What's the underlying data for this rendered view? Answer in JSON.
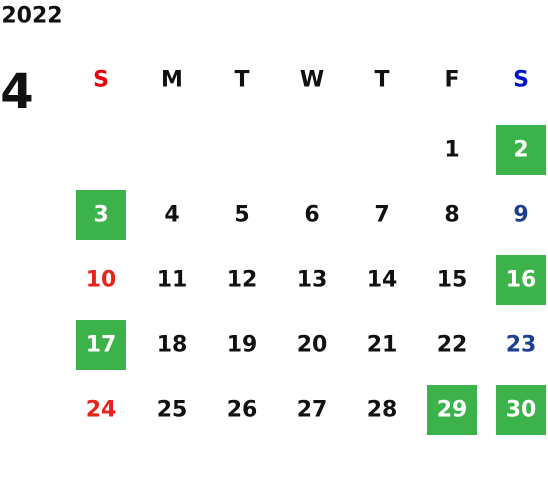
{
  "year": "2022",
  "month": "4",
  "weekdays": [
    {
      "text": "S",
      "color": "#e60012"
    },
    {
      "text": "M"
    },
    {
      "text": "T"
    },
    {
      "text": "W"
    },
    {
      "text": "T"
    },
    {
      "text": "F"
    },
    {
      "text": "S",
      "color": "#0014cc"
    }
  ],
  "colors": {
    "default": "#111111",
    "sunday": "#e8231c",
    "saturday": "#1e3f91",
    "highlight": "#3bb34a",
    "highlight_text": "#ffffff"
  },
  "weeks": [
    [
      null,
      null,
      null,
      null,
      null,
      {
        "text": "1"
      },
      {
        "text": "2",
        "highlight": true
      }
    ],
    [
      {
        "text": "3",
        "highlight": true
      },
      {
        "text": "4"
      },
      {
        "text": "5"
      },
      {
        "text": "6"
      },
      {
        "text": "7"
      },
      {
        "text": "8"
      },
      {
        "text": "9"
      }
    ],
    [
      {
        "text": "10"
      },
      {
        "text": "11"
      },
      {
        "text": "12"
      },
      {
        "text": "13"
      },
      {
        "text": "14"
      },
      {
        "text": "15"
      },
      {
        "text": "16",
        "highlight": true
      }
    ],
    [
      {
        "text": "17",
        "highlight": true
      },
      {
        "text": "18"
      },
      {
        "text": "19"
      },
      {
        "text": "20"
      },
      {
        "text": "21"
      },
      {
        "text": "22"
      },
      {
        "text": "23"
      }
    ],
    [
      {
        "text": "24"
      },
      {
        "text": "25"
      },
      {
        "text": "26"
      },
      {
        "text": "27"
      },
      {
        "text": "28"
      },
      {
        "text": "29",
        "highlight": true
      },
      {
        "text": "30",
        "highlight": true
      }
    ]
  ]
}
